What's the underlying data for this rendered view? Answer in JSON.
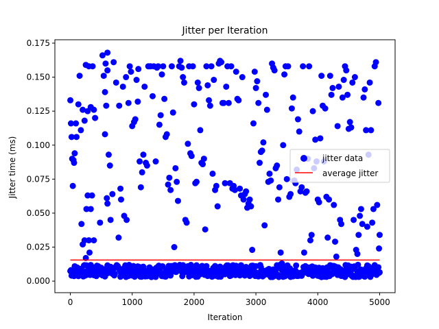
{
  "chart_data": {
    "type": "scatter",
    "title": "Jitter per Iteration",
    "xlabel": "Iteration",
    "ylabel": "Jitter time (ms)",
    "xlim": [
      -250,
      5250
    ],
    "ylim": [
      -0.0085,
      0.1775
    ],
    "xticks": [
      0,
      1000,
      2000,
      3000,
      4000,
      5000
    ],
    "xtick_labels": [
      "0",
      "1000",
      "2000",
      "3000",
      "4000",
      "5000"
    ],
    "yticks": [
      0.0,
      0.025,
      0.05,
      0.075,
      0.1,
      0.125,
      0.15,
      0.175
    ],
    "ytick_labels": [
      "0.000",
      "0.025",
      "0.050",
      "0.075",
      "0.100",
      "0.125",
      "0.150",
      "0.175"
    ],
    "grid": false,
    "legend_position": "center-right",
    "series": [
      {
        "name": "jitter data",
        "kind": "scatter",
        "color": "#0000ff",
        "points": [
          [
            0,
            0.133
          ],
          [
            10,
            0.116
          ],
          [
            20,
            0.106
          ],
          [
            30,
            0.09
          ],
          [
            40,
            0.07
          ],
          [
            50,
            0.089
          ],
          [
            60,
            0.087
          ],
          [
            70,
            0.094
          ],
          [
            90,
            0.116
          ],
          [
            100,
            0.106
          ],
          [
            130,
            0.13
          ],
          [
            150,
            0.151
          ],
          [
            170,
            0.111
          ],
          [
            200,
            0.126
          ],
          [
            230,
            0.118
          ],
          [
            250,
            0.159
          ],
          [
            280,
            0.125
          ],
          [
            300,
            0.158
          ],
          [
            330,
            0.128
          ],
          [
            360,
            0.158
          ],
          [
            380,
            0.126
          ],
          [
            400,
            0.12
          ],
          [
            180,
            0.042
          ],
          [
            230,
            0.03
          ],
          [
            260,
            0.053
          ],
          [
            280,
            0.063
          ],
          [
            300,
            0.03
          ],
          [
            330,
            0.053
          ],
          [
            350,
            0.063
          ],
          [
            380,
            0.03
          ],
          [
            200,
            0.027
          ],
          [
            250,
            0.017
          ],
          [
            310,
            0.021
          ],
          [
            480,
            0.043
          ],
          [
            520,
            0.166
          ],
          [
            540,
            0.151
          ],
          [
            570,
            0.16
          ],
          [
            600,
            0.155
          ],
          [
            560,
            0.139
          ],
          [
            580,
            0.129
          ],
          [
            600,
            0.168
          ],
          [
            620,
            0.093
          ],
          [
            640,
            0.085
          ],
          [
            560,
            0.108
          ],
          [
            590,
            0.061
          ],
          [
            600,
            0.057
          ],
          [
            650,
            0.045
          ],
          [
            680,
            0.064
          ],
          [
            700,
            0.161
          ],
          [
            740,
            0.146
          ],
          [
            780,
            0.032
          ],
          [
            790,
            0.129
          ],
          [
            810,
            0.068
          ],
          [
            820,
            0.06
          ],
          [
            850,
            0.143
          ],
          [
            870,
            0.048
          ],
          [
            900,
            0.15
          ],
          [
            910,
            0.045
          ],
          [
            940,
            0.131
          ],
          [
            960,
            0.158
          ],
          [
            980,
            0.154
          ],
          [
            1000,
            0.114
          ],
          [
            1030,
            0.117
          ],
          [
            1050,
            0.119
          ],
          [
            1070,
            0.148
          ],
          [
            1090,
            0.132
          ],
          [
            1100,
            0.156
          ],
          [
            1120,
            0.088
          ],
          [
            1140,
            0.069
          ],
          [
            1160,
            0.08
          ],
          [
            1180,
            0.093
          ],
          [
            1200,
            0.143
          ],
          [
            1220,
            0.087
          ],
          [
            1240,
            0.085
          ],
          [
            1260,
            0.158
          ],
          [
            1280,
            0.158
          ],
          [
            1300,
            0.158
          ],
          [
            1330,
            0.136
          ],
          [
            1350,
            0.158
          ],
          [
            1380,
            0.088
          ],
          [
            1400,
            0.157
          ],
          [
            1420,
            0.158
          ],
          [
            1440,
            0.115
          ],
          [
            1460,
            0.122
          ],
          [
            1480,
            0.152
          ],
          [
            1500,
            0.158
          ],
          [
            1520,
            0.134
          ],
          [
            1540,
            0.106
          ],
          [
            1560,
            0.108
          ],
          [
            1580,
            0.071
          ],
          [
            1600,
            0.076
          ],
          [
            1620,
            0.067
          ],
          [
            1640,
            0.158
          ],
          [
            1660,
            0.124
          ],
          [
            1680,
            0.025
          ],
          [
            1700,
            0.083
          ],
          [
            1720,
            0.073
          ],
          [
            1740,
            0.059
          ],
          [
            1760,
            0.158
          ],
          [
            1780,
            0.162
          ],
          [
            1800,
            0.157
          ],
          [
            1820,
            0.15
          ],
          [
            1840,
            0.146
          ],
          [
            1860,
            0.045
          ],
          [
            1880,
            0.043
          ],
          [
            1900,
            0.101
          ],
          [
            1920,
            0.158
          ],
          [
            1940,
            0.094
          ],
          [
            1960,
            0.092
          ],
          [
            1980,
            0.158
          ],
          [
            2000,
            0.13
          ],
          [
            2020,
            0.072
          ],
          [
            2040,
            0.073
          ],
          [
            2060,
            0.146
          ],
          [
            2080,
            0.142
          ],
          [
            2100,
            0.111
          ],
          [
            2120,
            0.087
          ],
          [
            2140,
            0.086
          ],
          [
            2160,
            0.09
          ],
          [
            2180,
            0.038
          ],
          [
            2200,
            0.158
          ],
          [
            2220,
            0.144
          ],
          [
            2240,
            0.133
          ],
          [
            2260,
            0.129
          ],
          [
            2280,
            0.158
          ],
          [
            2300,
            0.079
          ],
          [
            2320,
            0.148
          ],
          [
            2340,
            0.067
          ],
          [
            2360,
            0.07
          ],
          [
            2380,
            0.055
          ],
          [
            2400,
            0.16
          ],
          [
            2420,
            0.162
          ],
          [
            2440,
            0.161
          ],
          [
            2460,
            0.131
          ],
          [
            2480,
            0.131
          ],
          [
            2500,
            0.072
          ],
          [
            2520,
            0.143
          ],
          [
            2540,
            0.158
          ],
          [
            2560,
            0.131
          ],
          [
            2580,
            0.072
          ],
          [
            2600,
            0.158
          ],
          [
            2620,
            0.068
          ],
          [
            2640,
            0.07
          ],
          [
            2660,
            0.067
          ],
          [
            2680,
            0.154
          ],
          [
            2700,
            0.134
          ],
          [
            2720,
            0.133
          ],
          [
            2740,
            0.068
          ],
          [
            2760,
            0.063
          ],
          [
            2780,
            0.15
          ],
          [
            2800,
            0.06
          ],
          [
            2820,
            0.064
          ],
          [
            2840,
            0.066
          ],
          [
            2860,
            0.054
          ],
          [
            2880,
            0.057
          ],
          [
            2900,
            0.06
          ],
          [
            2920,
            0.055
          ],
          [
            2940,
            0.023
          ],
          [
            2960,
            0.116
          ],
          [
            2980,
            0.154
          ],
          [
            3000,
            0.142
          ],
          [
            3020,
            0.147
          ],
          [
            3040,
            0.131
          ],
          [
            3060,
            0.087
          ],
          [
            3080,
            0.095
          ],
          [
            3100,
            0.096
          ],
          [
            3120,
            0.102
          ],
          [
            3140,
            0.041
          ],
          [
            3160,
            0.137
          ],
          [
            3180,
            0.126
          ],
          [
            3200,
            0.073
          ],
          [
            3220,
            0.079
          ],
          [
            3240,
            0.074
          ],
          [
            3260,
            0.16
          ],
          [
            3280,
            0.157
          ],
          [
            3300,
            0.155
          ],
          [
            3320,
            0.083
          ],
          [
            3340,
            0.085
          ],
          [
            3360,
            0.06
          ],
          [
            3380,
            0.069
          ],
          [
            3400,
            0.021
          ],
          [
            3420,
            0.013
          ],
          [
            3440,
            0.1
          ],
          [
            3460,
            0.152
          ],
          [
            3480,
            0.158
          ],
          [
            3500,
            0.075
          ],
          [
            3520,
            0.158
          ],
          [
            3540,
            0.062
          ],
          [
            3560,
            0.064
          ],
          [
            3580,
            0.127
          ],
          [
            3600,
            0.135
          ],
          [
            3620,
            0.074
          ],
          [
            3640,
            0.072
          ],
          [
            3660,
            0.082
          ],
          [
            3680,
            0.119
          ],
          [
            3700,
            0.11
          ],
          [
            3720,
            0.066
          ],
          [
            3740,
            0.069
          ],
          [
            3760,
            0.158
          ],
          [
            3780,
            0.021
          ],
          [
            3800,
            0.065
          ],
          [
            3820,
            0.066
          ],
          [
            3840,
            0.09
          ],
          [
            3860,
            0.158
          ],
          [
            3880,
            0.03
          ],
          [
            3900,
            0.034
          ],
          [
            3920,
            0.125
          ],
          [
            3940,
            0.083
          ],
          [
            3960,
            0.104
          ],
          [
            3980,
            0.088
          ],
          [
            4000,
            0.06
          ],
          [
            4020,
            0.058
          ],
          [
            4040,
            0.105
          ],
          [
            4060,
            0.151
          ],
          [
            4080,
            0.129
          ],
          [
            4100,
            0.088
          ],
          [
            4120,
            0.127
          ],
          [
            4140,
            0.062
          ],
          [
            4160,
            0.032
          ],
          [
            4180,
            0.06
          ],
          [
            4200,
            0.151
          ],
          [
            4220,
            0.137
          ],
          [
            4240,
            0.142
          ],
          [
            4260,
            0.056
          ],
          [
            4280,
            0.029
          ],
          [
            4300,
            0.018
          ],
          [
            4320,
            0.114
          ],
          [
            4340,
            0.143
          ],
          [
            4360,
            0.045
          ],
          [
            4380,
            0.042
          ],
          [
            4400,
            0.135
          ],
          [
            4420,
            0.148
          ],
          [
            4440,
            0.158
          ],
          [
            4460,
            0.155
          ],
          [
            4480,
            0.137
          ],
          [
            4500,
            0.112
          ],
          [
            4520,
            0.117
          ],
          [
            4540,
            0.113
          ],
          [
            4560,
            0.146
          ],
          [
            4580,
            0.045
          ],
          [
            4600,
            0.15
          ],
          [
            4620,
            0.023
          ],
          [
            4640,
            0.02
          ],
          [
            4660,
            0.034
          ],
          [
            4680,
            0.048
          ],
          [
            4700,
            0.053
          ],
          [
            4720,
            0.042
          ],
          [
            4740,
            0.135
          ],
          [
            4760,
            0.141
          ],
          [
            4780,
            0.111
          ],
          [
            4800,
            0.04
          ],
          [
            4820,
            0.093
          ],
          [
            4840,
            0.146
          ],
          [
            4860,
            0.111
          ],
          [
            4880,
            0.043
          ],
          [
            4900,
            0.053
          ],
          [
            4920,
            0.158
          ],
          [
            4940,
            0.161
          ],
          [
            4960,
            0.056
          ],
          [
            4980,
            0.131
          ],
          [
            4990,
            0.024
          ],
          [
            5000,
            0.034
          ]
        ],
        "baseline_band": {
          "description_values": "dense low-jitter cluster",
          "x_start": 0,
          "x_end": 5000,
          "y_min": 0.003,
          "y_max": 0.012
        }
      },
      {
        "name": "average jitter",
        "kind": "line",
        "color": "#ff0000",
        "x": [
          0,
          5000
        ],
        "y": [
          0.0155,
          0.0155
        ]
      }
    ]
  }
}
